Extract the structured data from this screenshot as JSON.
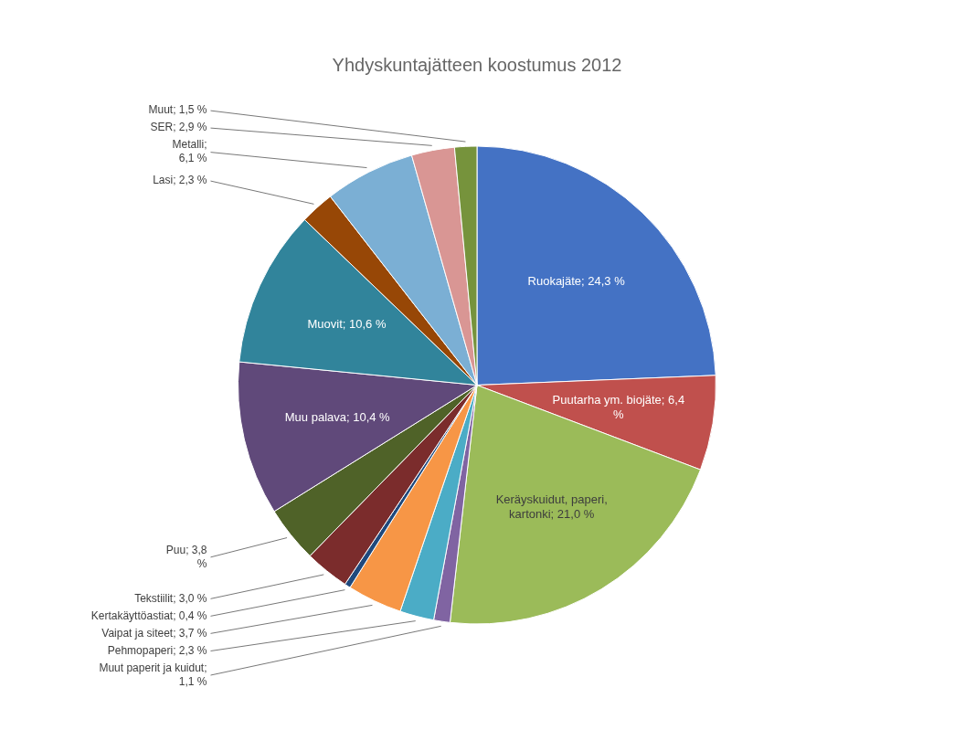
{
  "chart_data": {
    "type": "pie",
    "title": "Yhdyskuntajätteen koostumus 2012",
    "categories": [
      "Ruokajäte; 24,3 %",
      "Puutarha ym. biojäte; 6,4\n%",
      "Keräyskuidut, paperi,\nkartonki; 21,0 %",
      "Muut paperit ja kuidut;\n1,1 %",
      "Pehmopaperi; 2,3 %",
      "Vaipat ja siteet; 3,7 %",
      "Kertakäyttöastiat; 0,4 %",
      "Tekstiilit; 3,0 %",
      "Puu; 3,8\n%",
      "Muu palava; 10,4 %",
      "Muovit; 10,6 %",
      "Lasi; 2,3 %",
      "Metalli;\n6,1 %",
      "SER; 2,9 %",
      "Muut; 1,5 %"
    ],
    "values": [
      24.3,
      6.4,
      21.0,
      1.1,
      2.3,
      3.7,
      0.4,
      3.0,
      3.8,
      10.4,
      10.6,
      2.3,
      6.1,
      2.9,
      1.5
    ],
    "colors": [
      "#4472C4",
      "#C0504D",
      "#9BBB59",
      "#8064A2",
      "#4BACC6",
      "#F79646",
      "#1F497D",
      "#7B2C2C",
      "#4F6228",
      "#60497A",
      "#31849B",
      "#974706",
      "#7BAFD4",
      "#D99694",
      "#76933C"
    ]
  }
}
